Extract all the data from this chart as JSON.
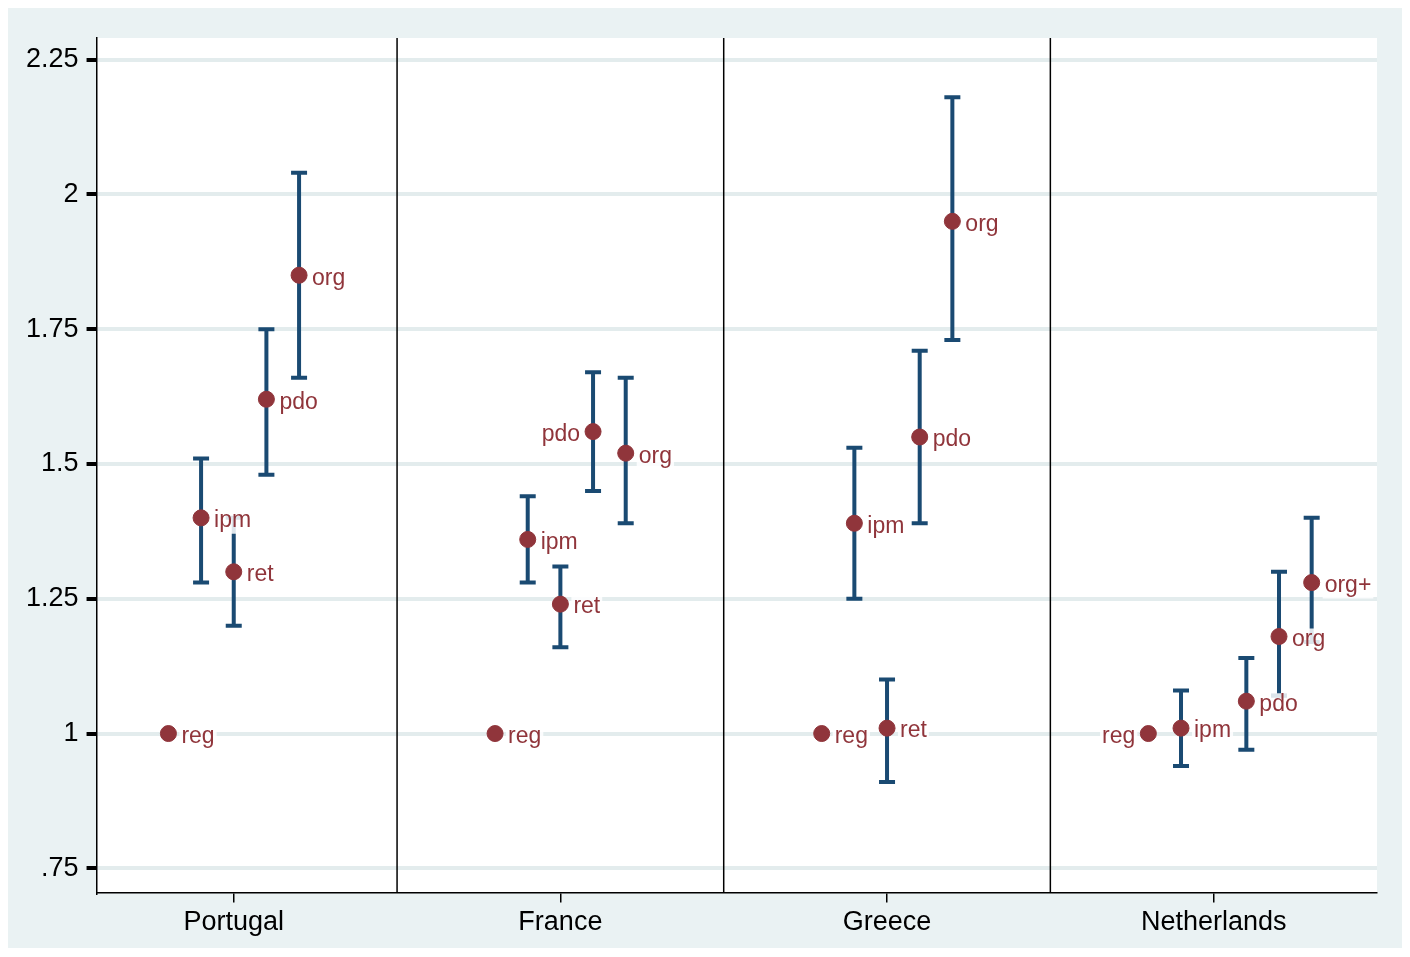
{
  "chart_data": {
    "type": "scatter",
    "categories": [
      "Portugal",
      "France",
      "Greece",
      "Netherlands"
    ],
    "ylim": [
      0.705,
      2.29
    ],
    "yticks": [
      {
        "value": 0.75,
        "label": ".75"
      },
      1,
      1.25,
      1.5,
      1.75,
      2,
      2.25
    ],
    "grid": "y",
    "legend": false,
    "marker": "circle",
    "series": [
      {
        "name": "reg",
        "color": "#90353b",
        "values": [
          1,
          1,
          1,
          1
        ]
      },
      {
        "name": "ipm",
        "color": "#90353b",
        "values": [
          1.4,
          1.36,
          1.39,
          1.01
        ],
        "errors": [
          [
            1.28,
            1.51
          ],
          [
            1.28,
            1.44
          ],
          [
            1.25,
            1.53
          ],
          [
            0.94,
            1.08
          ]
        ]
      },
      {
        "name": "ret",
        "color": "#90353b",
        "values": [
          1.3,
          1.24,
          1.01,
          null
        ],
        "errors": [
          [
            1.2,
            1.4
          ],
          [
            1.16,
            1.31
          ],
          [
            0.91,
            1.1
          ],
          null
        ]
      },
      {
        "name": "pdo",
        "color": "#90353b",
        "values": [
          1.62,
          1.56,
          1.55,
          1.06
        ],
        "errors": [
          [
            1.48,
            1.75
          ],
          [
            1.45,
            1.67
          ],
          [
            1.39,
            1.71
          ],
          [
            0.97,
            1.14
          ]
        ]
      },
      {
        "name": "org",
        "color": "#90353b",
        "values": [
          1.85,
          1.52,
          1.95,
          1.18
        ],
        "errors": [
          [
            1.66,
            2.04
          ],
          [
            1.39,
            1.66
          ],
          [
            1.73,
            2.18
          ],
          [
            1.07,
            1.3
          ]
        ]
      },
      {
        "name": "org+",
        "color": "#90353b",
        "values": [
          null,
          null,
          null,
          1.28
        ],
        "errors": [
          null,
          null,
          null,
          [
            1.17,
            1.4
          ]
        ]
      }
    ]
  }
}
